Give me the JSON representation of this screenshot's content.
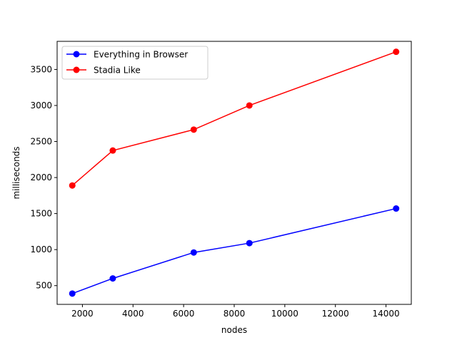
{
  "chart_data": {
    "type": "line",
    "title": "",
    "xlabel": "nodes",
    "ylabel": "milliseconds",
    "xlim": [
      1000,
      15000
    ],
    "ylim": [
      240,
      3890
    ],
    "xticks": [
      2000,
      4000,
      6000,
      8000,
      10000,
      12000,
      14000
    ],
    "yticks": [
      500,
      1000,
      1500,
      2000,
      2500,
      3000,
      3500
    ],
    "grid": false,
    "legend_position": "upper-left",
    "series": [
      {
        "name": "Everything in Browser",
        "color": "#0000ff",
        "marker": "circle",
        "x": [
          1600,
          3200,
          6400,
          8600,
          14400
        ],
        "y": [
          390,
          600,
          960,
          1090,
          1570
        ]
      },
      {
        "name": "Stadia Like",
        "color": "#ff0000",
        "marker": "circle",
        "x": [
          1600,
          3200,
          6400,
          8600,
          14400
        ],
        "y": [
          1890,
          2375,
          2665,
          3000,
          3745
        ]
      }
    ]
  }
}
